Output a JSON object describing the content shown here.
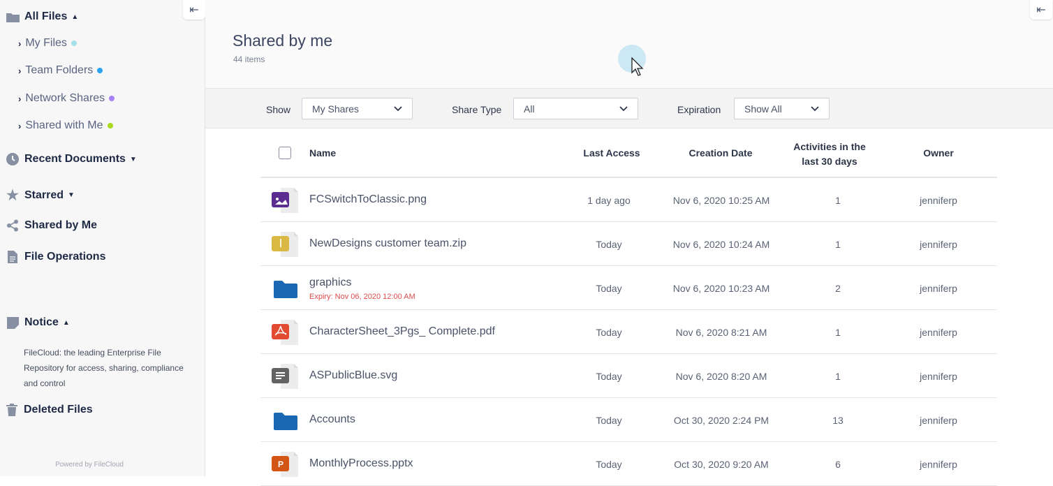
{
  "sidebar": {
    "all_files": "All Files",
    "sub_items": [
      {
        "label": "My Files",
        "color": "#a6e0ea"
      },
      {
        "label": "Team Folders",
        "color": "#2aa3f5"
      },
      {
        "label": "Network Shares",
        "color": "#a583f5"
      },
      {
        "label": "Shared with Me",
        "color": "#a9d91e"
      }
    ],
    "recent": "Recent Documents",
    "starred": "Starred",
    "shared_by_me": "Shared by Me",
    "file_operations": "File Operations",
    "notice": "Notice",
    "notice_text": "FileCloud: the leading Enterprise File Repository for access, sharing, compliance and control",
    "deleted": "Deleted Files",
    "powered": "Powered by FileCloud"
  },
  "header": {
    "title": "Shared by me",
    "count": "44 items"
  },
  "filters": {
    "show_label": "Show",
    "show_value": "My Shares",
    "type_label": "Share Type",
    "type_value": "All",
    "exp_label": "Expiration",
    "exp_value": "Show All"
  },
  "table": {
    "columns": [
      "Name",
      "Last Access",
      "Creation Date",
      "Activities in the last 30 days",
      "Owner"
    ],
    "rows": [
      {
        "icon": "image-file-icon",
        "color": "#5b2d91",
        "name": "FCSwitchToClassic.png",
        "last": "1 day ago",
        "created": "Nov 6, 2020 10:25 AM",
        "activities": "1",
        "owner": "jenniferp"
      },
      {
        "icon": "zip-file-icon",
        "color": "#d9b944",
        "name": "NewDesigns customer team.zip",
        "last": "Today",
        "created": "Nov 6, 2020 10:24 AM",
        "activities": "1",
        "owner": "jenniferp"
      },
      {
        "icon": "folder-icon",
        "color": "#1a67b3",
        "name": "graphics",
        "expiry": "Expiry: Nov 06, 2020 12:00 AM",
        "last": "Today",
        "created": "Nov 6, 2020 10:23 AM",
        "activities": "2",
        "owner": "jenniferp"
      },
      {
        "icon": "pdf-file-icon",
        "color": "#e24a32",
        "name": "CharacterSheet_3Pgs_ Complete.pdf",
        "last": "Today",
        "created": "Nov 6, 2020 8:21 AM",
        "activities": "1",
        "owner": "jenniferp"
      },
      {
        "icon": "text-file-icon",
        "color": "#636363",
        "name": "ASPublicBlue.svg",
        "last": "Today",
        "created": "Nov 6, 2020 8:20 AM",
        "activities": "1",
        "owner": "jenniferp"
      },
      {
        "icon": "folder-icon",
        "color": "#1a67b3",
        "name": "Accounts",
        "last": "Today",
        "created": "Oct 30, 2020 2:24 PM",
        "activities": "13",
        "owner": "jenniferp"
      },
      {
        "icon": "pptx-file-icon",
        "color": "#d35617",
        "name": "MonthlyProcess.pptx",
        "last": "Today",
        "created": "Oct 30, 2020 9:20 AM",
        "activities": "6",
        "owner": "jenniferp"
      }
    ]
  }
}
